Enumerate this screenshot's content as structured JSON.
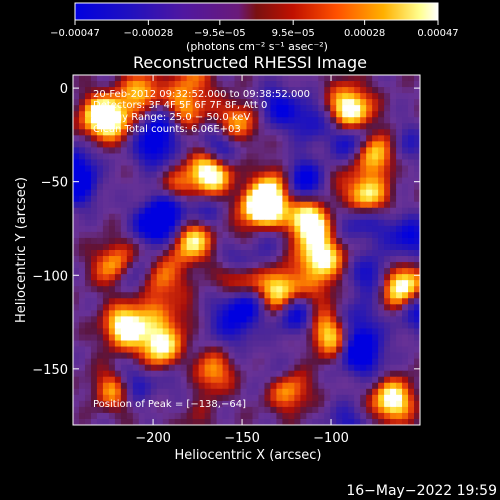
{
  "chart_data": {
    "type": "heatmap",
    "title": "Reconstructed RHESSI Image",
    "xlabel": "Heliocentric X (arcsec)",
    "ylabel": "Heliocentric Y (arcsec)",
    "xlim": [
      -245,
      -50
    ],
    "ylim": [
      -180,
      7
    ],
    "x_ticks": [
      -200,
      -150,
      -100
    ],
    "x_tick_labels": [
      "−200",
      "−150",
      "−100"
    ],
    "y_ticks": [
      0,
      -50,
      -100,
      -150
    ],
    "y_tick_labels": [
      "0",
      "−50",
      "−100",
      "−150"
    ],
    "colorbar": {
      "range": [
        -0.00047,
        0.00047
      ],
      "ticks": [
        -0.00047,
        -0.00028,
        -9.5e-05,
        9.5e-05,
        0.00028,
        0.00047
      ],
      "tick_labels": [
        "−0.00047",
        "−0.00028",
        "−9.5e−05",
        "9.5e−05",
        "0.00028",
        "0.00047"
      ],
      "units": "(photons cm⁻² s⁻¹ asec⁻²)",
      "colors": [
        "#0000d8",
        "#3818a8",
        "#6030a0",
        "#8a20a0",
        "#b0100a",
        "#e03010",
        "#ff7a00",
        "#ffc000",
        "#ffff80",
        "#ffffff"
      ]
    },
    "annotations": {
      "time_range": "20-Feb-2012 09:32:52.000 to 09:38:52.000",
      "detectors": "Detectors: 3F 4F 5F 6F 7F 8F, Att 0",
      "energy": "Energy Range: 25.0 − 50.0 keV",
      "clean": "Clean     Total counts: 6.06E+03",
      "peak": "Position of Peak = [−138,−64]"
    },
    "peak": {
      "x": -138,
      "y": -64
    },
    "grid": false
  },
  "footer": {
    "timestamp": "16−May−2022 19:59"
  }
}
